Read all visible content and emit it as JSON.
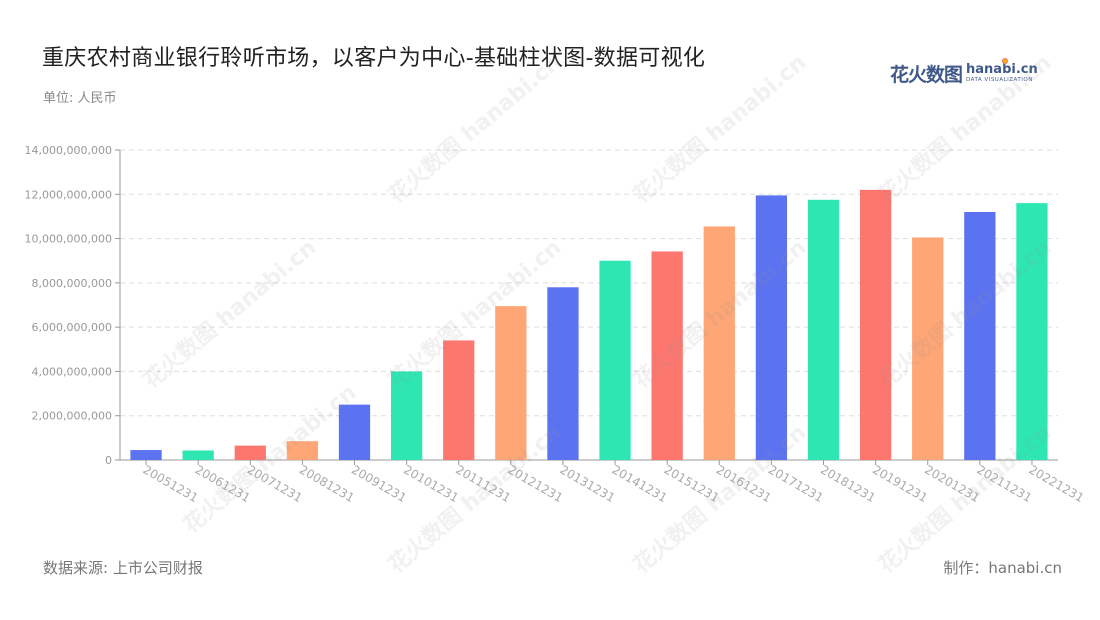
{
  "title": "重庆农村商业银行聆听市场，以客户为中心-基础柱状图-数据可视化",
  "unit_label": "单位: 人民币",
  "source": "数据来源: 上市公司财报",
  "credit": "制作：hanabi.cn",
  "logo": {
    "cn": "花火数图",
    "en": "hanabi.cn",
    "tagline": "DATA VISUALIZATION"
  },
  "watermark_text": "花火数图 hanabi.cn",
  "colors": {
    "palette": [
      "#5b73f0",
      "#2de6b2",
      "#fe776f",
      "#fea676"
    ],
    "grid": "#dddddd",
    "axis": "#999999",
    "tick_text": "#999999",
    "x_tick_text": "#aaaaaa"
  },
  "chart_data": {
    "type": "bar",
    "categories": [
      "20051231",
      "20061231",
      "20071231",
      "20081231",
      "20091231",
      "20101231",
      "20111231",
      "20121231",
      "20131231",
      "20141231",
      "20151231",
      "20161231",
      "20171231",
      "20181231",
      "20191231",
      "20201231",
      "20211231",
      "20221231"
    ],
    "values": [
      450000000,
      430000000,
      650000000,
      850000000,
      2500000000,
      4000000000,
      5400000000,
      6950000000,
      7800000000,
      9000000000,
      9420000000,
      10550000000,
      11950000000,
      11750000000,
      12200000000,
      10050000000,
      11200000000,
      11600000000
    ],
    "ylim": [
      0,
      14000000000
    ],
    "yticks": [
      0,
      2000000000,
      4000000000,
      6000000000,
      8000000000,
      10000000000,
      12000000000,
      14000000000
    ],
    "ytick_labels": [
      "0",
      "2,000,000,000",
      "4,000,000,000",
      "6,000,000,000",
      "8,000,000,000",
      "10,000,000,000",
      "12,000,000,000",
      "14,000,000,000"
    ],
    "grid": true,
    "color_cycle": "repeat every 4 bars: blue, teal, red, orange"
  }
}
